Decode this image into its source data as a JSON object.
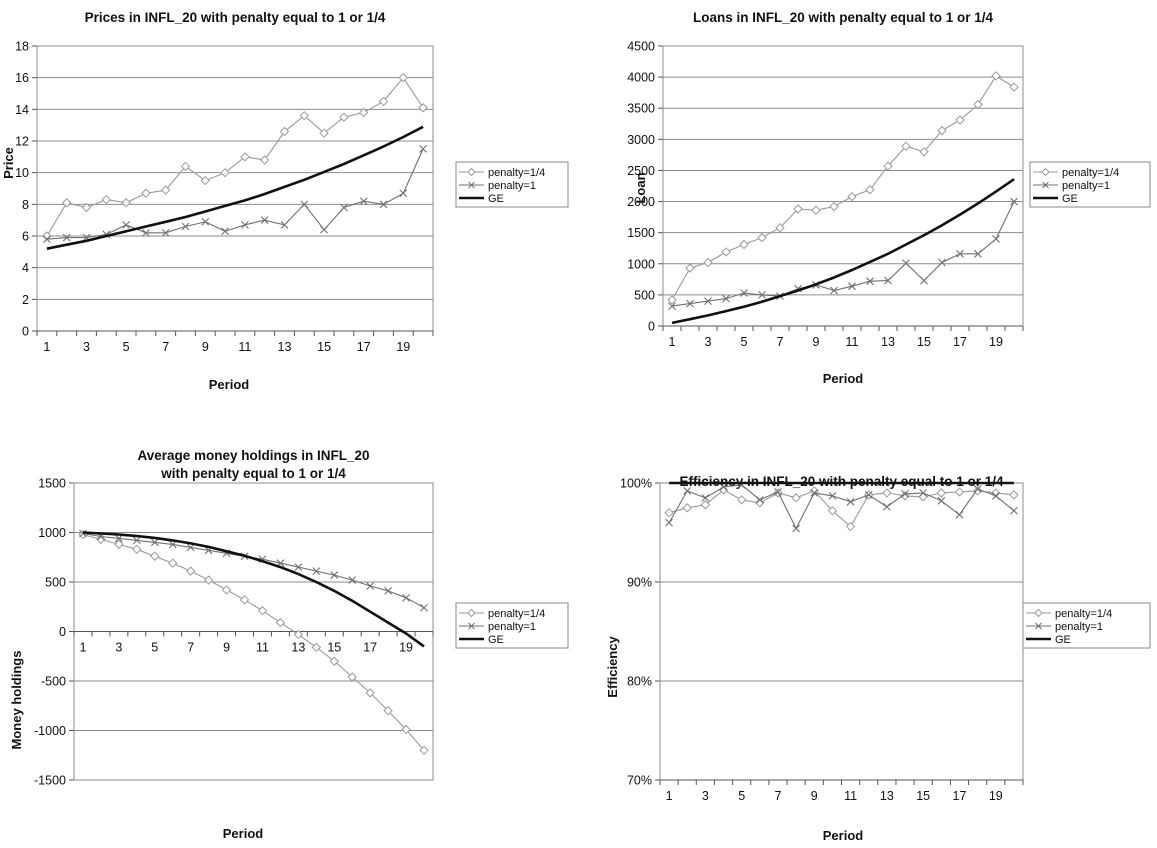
{
  "colors": {
    "penalty_quarter": "#9a9a9a",
    "penalty_one": "#707070",
    "ge": "#111111",
    "grid": "#8c8c8c",
    "plot_border": "#8c8c8c"
  },
  "chart_data": [
    {
      "type": "line",
      "title": "Prices in INFL_20 with penalty equal to 1 or 1/4",
      "xlabel": "Period",
      "ylabel": "Price",
      "x": [
        1,
        2,
        3,
        4,
        5,
        6,
        7,
        8,
        9,
        10,
        11,
        12,
        13,
        14,
        15,
        16,
        17,
        18,
        19,
        20
      ],
      "x_tick_labels": [
        "1",
        "3",
        "5",
        "7",
        "9",
        "11",
        "13",
        "15",
        "17",
        "19"
      ],
      "y_tick_labels": [
        "0",
        "2",
        "4",
        "6",
        "8",
        "10",
        "12",
        "14",
        "16",
        "18"
      ],
      "ylim": [
        0,
        18
      ],
      "grid": true,
      "legend_position": "right",
      "series": [
        {
          "name": "penalty=1/4",
          "marker": "diamond",
          "values": [
            6.0,
            8.1,
            7.8,
            8.3,
            8.1,
            8.7,
            8.9,
            10.4,
            9.5,
            10.0,
            11.0,
            10.8,
            12.6,
            13.6,
            12.5,
            13.5,
            13.8,
            14.5,
            16.0,
            14.1
          ]
        },
        {
          "name": "penalty=1",
          "marker": "x",
          "values": [
            5.8,
            5.9,
            5.9,
            6.1,
            6.7,
            6.2,
            6.2,
            6.6,
            6.9,
            6.3,
            6.7,
            7.0,
            6.7,
            8.0,
            6.4,
            7.8,
            8.2,
            8.0,
            8.7,
            11.5
          ]
        },
        {
          "name": "GE",
          "marker": "none",
          "values": [
            5.2,
            5.45,
            5.7,
            6.0,
            6.3,
            6.6,
            6.9,
            7.2,
            7.55,
            7.9,
            8.25,
            8.65,
            9.1,
            9.55,
            10.05,
            10.55,
            11.1,
            11.65,
            12.25,
            12.9
          ]
        }
      ]
    },
    {
      "type": "line",
      "title": "Loans in INFL_20 with penalty equal to 1 or 1/4",
      "xlabel": "Period",
      "ylabel": "Loan",
      "x": [
        1,
        2,
        3,
        4,
        5,
        6,
        7,
        8,
        9,
        10,
        11,
        12,
        13,
        14,
        15,
        16,
        17,
        18,
        19,
        20
      ],
      "x_tick_labels": [
        "1",
        "3",
        "5",
        "7",
        "9",
        "11",
        "13",
        "15",
        "17",
        "19"
      ],
      "y_tick_labels": [
        "0",
        "500",
        "1000",
        "1500",
        "2000",
        "2500",
        "3000",
        "3500",
        "4000",
        "4500"
      ],
      "ylim": [
        0,
        4500
      ],
      "grid": true,
      "legend_position": "right",
      "series": [
        {
          "name": "penalty=1/4",
          "marker": "diamond",
          "values": [
            420,
            930,
            1020,
            1190,
            1310,
            1420,
            1580,
            1880,
            1860,
            1920,
            2080,
            2190,
            2570,
            2890,
            2800,
            3140,
            3310,
            3560,
            4020,
            3840
          ]
        },
        {
          "name": "penalty=1",
          "marker": "x",
          "values": [
            320,
            360,
            400,
            440,
            530,
            500,
            480,
            600,
            660,
            570,
            640,
            720,
            730,
            1010,
            730,
            1020,
            1160,
            1160,
            1400,
            2000
          ]
        },
        {
          "name": "GE",
          "marker": "none",
          "values": [
            50,
            110,
            170,
            240,
            310,
            390,
            480,
            570,
            670,
            780,
            900,
            1030,
            1160,
            1310,
            1460,
            1620,
            1790,
            1970,
            2160,
            2360
          ]
        }
      ]
    },
    {
      "type": "line",
      "title": [
        "Average money holdings in INFL_20",
        "with penalty equal to 1 or 1/4"
      ],
      "xlabel": "Period",
      "ylabel": "Money holdings",
      "x": [
        1,
        2,
        3,
        4,
        5,
        6,
        7,
        8,
        9,
        10,
        11,
        12,
        13,
        14,
        15,
        16,
        17,
        18,
        19,
        20
      ],
      "x_tick_labels": [
        "1",
        "3",
        "5",
        "7",
        "9",
        "11",
        "13",
        "15",
        "17",
        "19"
      ],
      "y_tick_labels": [
        "-1500",
        "-1000",
        "-500",
        "0",
        "500",
        "1000",
        "1500"
      ],
      "ylim": [
        -1500,
        1500
      ],
      "grid": true,
      "legend_position": "right",
      "series": [
        {
          "name": "penalty=1/4",
          "marker": "diamond",
          "values": [
            980,
            930,
            880,
            830,
            760,
            690,
            610,
            520,
            420,
            320,
            210,
            90,
            -30,
            -160,
            -300,
            -460,
            -620,
            -800,
            -990,
            -1200
          ]
        },
        {
          "name": "penalty=1",
          "marker": "x",
          "values": [
            990,
            960,
            940,
            920,
            900,
            880,
            850,
            820,
            790,
            760,
            730,
            690,
            650,
            610,
            570,
            520,
            460,
            410,
            340,
            240
          ]
        },
        {
          "name": "GE",
          "marker": "none",
          "values": [
            1000,
            990,
            980,
            965,
            945,
            920,
            890,
            855,
            810,
            765,
            710,
            650,
            580,
            500,
            410,
            310,
            200,
            90,
            -20,
            -150
          ]
        }
      ]
    },
    {
      "type": "line",
      "title": "Efficiency in INFL_20 with penalty equal to 1 or 1/4",
      "xlabel": "Period",
      "ylabel": "Efficiency",
      "x": [
        1,
        2,
        3,
        4,
        5,
        6,
        7,
        8,
        9,
        10,
        11,
        12,
        13,
        14,
        15,
        16,
        17,
        18,
        19,
        20
      ],
      "x_tick_labels": [
        "1",
        "3",
        "5",
        "7",
        "9",
        "11",
        "13",
        "15",
        "17",
        "19"
      ],
      "y_tick_labels": [
        "70%",
        "80%",
        "90%",
        "100%"
      ],
      "ylim": [
        70,
        100
      ],
      "grid": true,
      "legend_position": "right",
      "series": [
        {
          "name": "penalty=1/4",
          "marker": "diamond",
          "values": [
            97.0,
            97.5,
            97.8,
            99.3,
            98.3,
            98.0,
            99.0,
            98.5,
            99.2,
            97.2,
            95.6,
            98.8,
            99.0,
            98.7,
            98.6,
            99.0,
            99.1,
            99.2,
            99.0,
            98.8
          ]
        },
        {
          "name": "penalty=1",
          "marker": "x",
          "values": [
            96.0,
            99.2,
            98.5,
            99.6,
            99.8,
            98.3,
            99.1,
            95.4,
            99.0,
            98.7,
            98.1,
            98.8,
            97.6,
            98.9,
            99.0,
            98.2,
            96.8,
            99.4,
            98.7,
            97.2
          ]
        },
        {
          "name": "GE",
          "marker": "none",
          "values": [
            100,
            100,
            100,
            100,
            100,
            100,
            100,
            100,
            100,
            100,
            100,
            100,
            100,
            100,
            100,
            100,
            100,
            100,
            100,
            100
          ]
        }
      ]
    }
  ]
}
